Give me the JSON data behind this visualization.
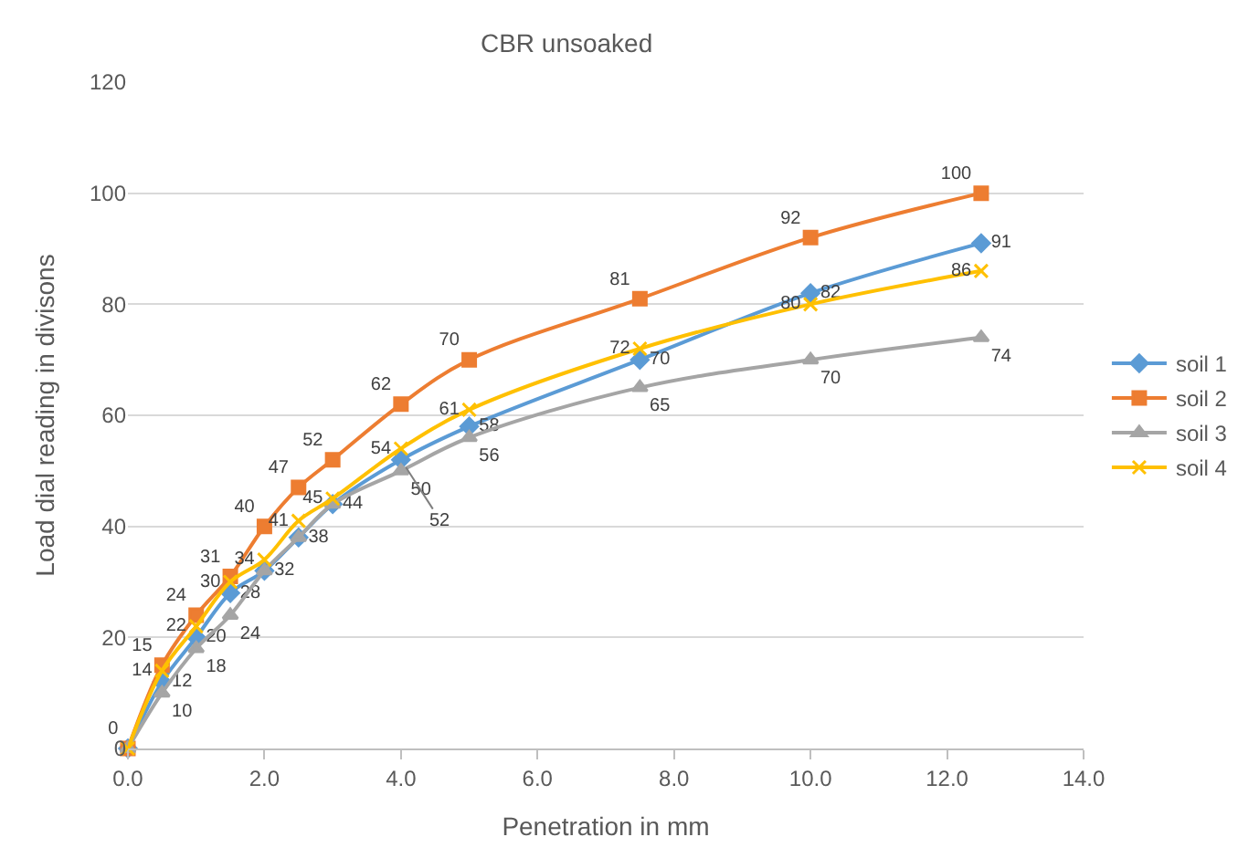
{
  "chart_data": {
    "type": "line",
    "title": "CBR unsoaked",
    "xlabel": "Penetration in mm",
    "ylabel": "Load dial reading in divisons",
    "x": [
      0,
      0.5,
      1.0,
      1.5,
      2.0,
      2.5,
      3.0,
      4.0,
      5.0,
      7.5,
      10.0,
      12.5
    ],
    "series": [
      {
        "name": "soil 1",
        "color": "#5b9bd5",
        "marker": "diamond",
        "values": [
          0,
          12,
          20,
          28,
          32,
          38,
          44,
          52,
          58,
          70,
          82,
          91
        ],
        "value_labels": [
          null,
          "12",
          "20",
          "28",
          "32",
          "38",
          "44",
          "52",
          "58",
          "70",
          "82",
          "91"
        ]
      },
      {
        "name": "soil 2",
        "color": "#ed7d31",
        "marker": "square",
        "values": [
          0,
          15,
          24,
          31,
          40,
          47,
          52,
          62,
          70,
          81,
          92,
          100
        ]
      },
      {
        "name": "soil 3",
        "color": "#a5a5a5",
        "marker": "triangle",
        "values": [
          0,
          10,
          18,
          24,
          32,
          38,
          44,
          50,
          56,
          65,
          70,
          74
        ],
        "value_labels": [
          null,
          "10",
          "18",
          "24",
          null,
          null,
          null,
          "50",
          "56",
          "65",
          "70",
          "74"
        ]
      },
      {
        "name": "soil 4",
        "color": "#ffc000",
        "marker": "cross",
        "values": [
          0,
          14,
          22,
          30,
          34,
          41,
          45,
          54,
          61,
          72,
          80,
          86
        ],
        "value_labels": [
          null,
          "14",
          "22",
          "30",
          "34",
          "41",
          "45",
          "54",
          "61",
          "72",
          "80",
          "86"
        ]
      }
    ],
    "xlim": [
      0,
      14
    ],
    "xticks": [
      {
        "value": 0,
        "label": "0.0"
      },
      {
        "value": 2,
        "label": "2.0"
      },
      {
        "value": 4,
        "label": "4.0"
      },
      {
        "value": 6,
        "label": "6.0"
      },
      {
        "value": 8,
        "label": "8.0"
      },
      {
        "value": 10,
        "label": "10.0"
      },
      {
        "value": 12,
        "label": "12.0"
      },
      {
        "value": 14,
        "label": "14.0"
      }
    ],
    "ylim": [
      0,
      120
    ],
    "yticks": [
      0,
      20,
      40,
      60,
      80,
      100,
      120
    ],
    "grid": "y",
    "legend": "right",
    "data_labels": true
  }
}
